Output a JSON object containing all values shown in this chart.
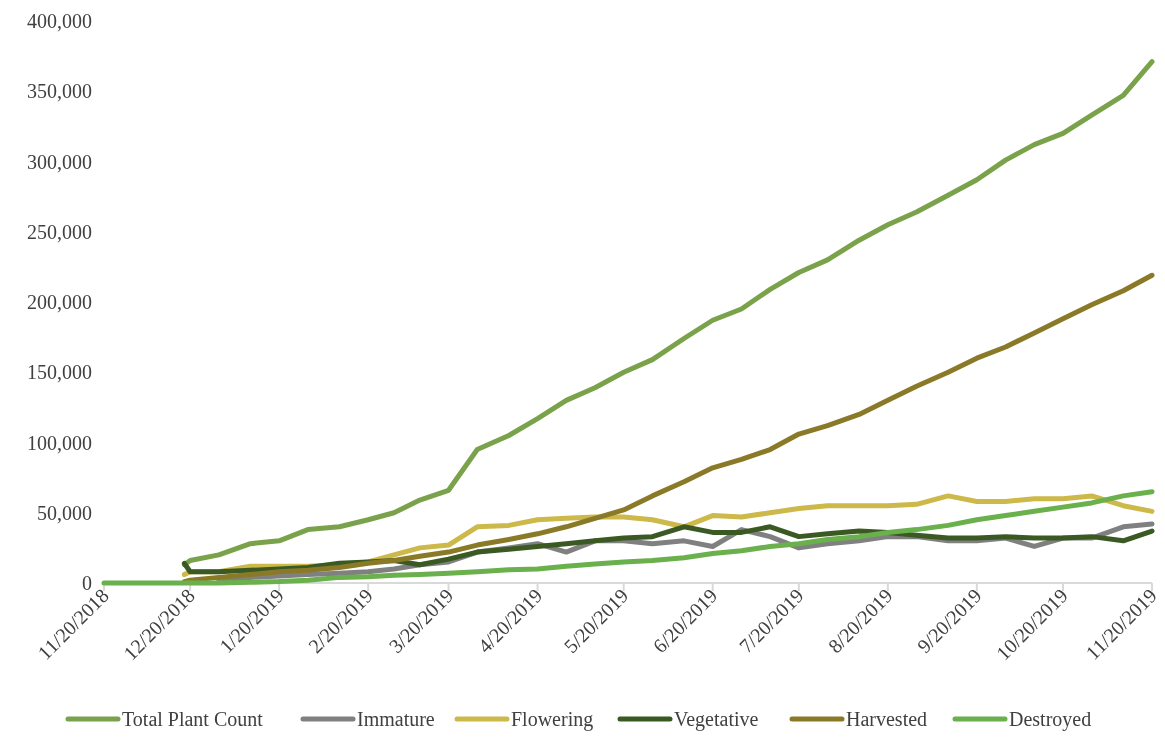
{
  "chart_data": {
    "type": "line",
    "x": [
      "2018-11-20",
      "2018-11-30",
      "2018-12-10",
      "2018-12-17",
      "2018-12-18",
      "2018-12-20",
      "2018-12-30",
      "2019-01-10",
      "2019-01-20",
      "2019-01-30",
      "2019-02-10",
      "2019-02-20",
      "2019-03-01",
      "2019-03-10",
      "2019-03-20",
      "2019-03-30",
      "2019-04-10",
      "2019-04-20",
      "2019-04-30",
      "2019-05-10",
      "2019-05-20",
      "2019-05-30",
      "2019-06-10",
      "2019-06-20",
      "2019-06-30",
      "2019-07-10",
      "2019-07-20",
      "2019-07-30",
      "2019-08-10",
      "2019-08-20",
      "2019-08-30",
      "2019-09-10",
      "2019-09-20",
      "2019-09-30",
      "2019-10-10",
      "2019-10-20",
      "2019-10-30",
      "2019-11-10",
      "2019-11-20"
    ],
    "series": [
      {
        "name": "Total Plant Count",
        "color": "#7aa24b",
        "values": [
          null,
          null,
          null,
          null,
          13000,
          16000,
          20000,
          28000,
          30000,
          38000,
          40000,
          45000,
          50000,
          59000,
          66000,
          95000,
          105000,
          117000,
          130000,
          139000,
          150000,
          159000,
          174000,
          187000,
          195000,
          209000,
          221000,
          230000,
          244000,
          255000,
          264000,
          276000,
          287000,
          301000,
          312000,
          320000,
          333000,
          347000,
          371000
        ]
      },
      {
        "name": "Immature",
        "color": "#808080",
        "values": [
          null,
          null,
          null,
          null,
          null,
          null,
          2000,
          4000,
          5000,
          6000,
          7000,
          8000,
          10000,
          13000,
          15000,
          22000,
          25000,
          28000,
          22000,
          30000,
          30000,
          28000,
          30000,
          26000,
          38000,
          33000,
          25000,
          28000,
          30000,
          33000,
          33000,
          30000,
          30000,
          32000,
          26000,
          32000,
          32000,
          40000,
          42000
        ]
      },
      {
        "name": "Flowering",
        "color": "#cdb84a",
        "values": [
          null,
          null,
          null,
          null,
          6000,
          8000,
          8000,
          12000,
          12000,
          12000,
          13000,
          15000,
          20000,
          25000,
          27000,
          40000,
          41000,
          45000,
          46000,
          47000,
          47000,
          45000,
          40000,
          48000,
          47000,
          50000,
          53000,
          55000,
          55000,
          55000,
          56000,
          62000,
          58000,
          58000,
          60000,
          60000,
          62000,
          55000,
          51000
        ]
      },
      {
        "name": "Vegetative",
        "color": "#3b5a23",
        "values": [
          null,
          null,
          null,
          null,
          14000,
          8000,
          8000,
          9000,
          10000,
          11000,
          14000,
          15000,
          16000,
          13000,
          17000,
          22000,
          24000,
          26000,
          28000,
          30000,
          32000,
          33000,
          40000,
          36000,
          36000,
          40000,
          33000,
          35000,
          37000,
          36000,
          34000,
          32000,
          32000,
          33000,
          32000,
          32000,
          33000,
          30000,
          37000
        ]
      },
      {
        "name": "Harvested",
        "color": "#8a7a28",
        "values": [
          null,
          null,
          null,
          null,
          1000,
          2000,
          4000,
          6000,
          8000,
          9000,
          11000,
          14000,
          16000,
          19000,
          22000,
          27000,
          31000,
          35000,
          40000,
          46000,
          52000,
          62000,
          72000,
          82000,
          88000,
          95000,
          106000,
          112000,
          120000,
          130000,
          140000,
          150000,
          160000,
          168000,
          178000,
          188000,
          198000,
          208000,
          219000
        ]
      },
      {
        "name": "Destroyed",
        "color": "#6ab04c",
        "values": [
          0,
          0,
          0,
          0,
          0,
          0,
          0,
          500,
          1000,
          2000,
          4000,
          4500,
          5500,
          6000,
          7000,
          8000,
          9500,
          10000,
          12000,
          13500,
          15000,
          16000,
          18000,
          21000,
          23000,
          26000,
          28000,
          31000,
          33000,
          36000,
          38000,
          41000,
          45000,
          48000,
          51000,
          54000,
          57000,
          62000,
          65000
        ]
      }
    ],
    "xlim": [
      "2018-11-20",
      "2019-11-20"
    ],
    "xticks": [
      {
        "value": "2018-11-20",
        "label": "11/20/2018"
      },
      {
        "value": "2018-12-20",
        "label": "12/20/2018"
      },
      {
        "value": "2019-01-20",
        "label": "1/20/2019"
      },
      {
        "value": "2019-02-20",
        "label": "2/20/2019"
      },
      {
        "value": "2019-03-20",
        "label": "3/20/2019"
      },
      {
        "value": "2019-04-20",
        "label": "4/20/2019"
      },
      {
        "value": "2019-05-20",
        "label": "5/20/2019"
      },
      {
        "value": "2019-06-20",
        "label": "6/20/2019"
      },
      {
        "value": "2019-07-20",
        "label": "7/20/2019"
      },
      {
        "value": "2019-08-20",
        "label": "8/20/2019"
      },
      {
        "value": "2019-09-20",
        "label": "9/20/2019"
      },
      {
        "value": "2019-10-20",
        "label": "10/20/2019"
      },
      {
        "value": "2019-11-20",
        "label": "11/20/2019"
      }
    ],
    "ylim": [
      0,
      400000
    ],
    "yticks": [
      0,
      {
        "value": 50000,
        "label": "50,000"
      },
      {
        "value": 100000,
        "label": "100,000"
      },
      {
        "value": 150000,
        "label": "150,000"
      },
      {
        "value": 200000,
        "label": "200,000"
      },
      {
        "value": 250000,
        "label": "250,000"
      },
      {
        "value": 300000,
        "label": "300,000"
      },
      {
        "value": 350000,
        "label": "350,000"
      },
      {
        "value": 400000,
        "label": "400,000"
      }
    ],
    "legend": "bottom"
  }
}
